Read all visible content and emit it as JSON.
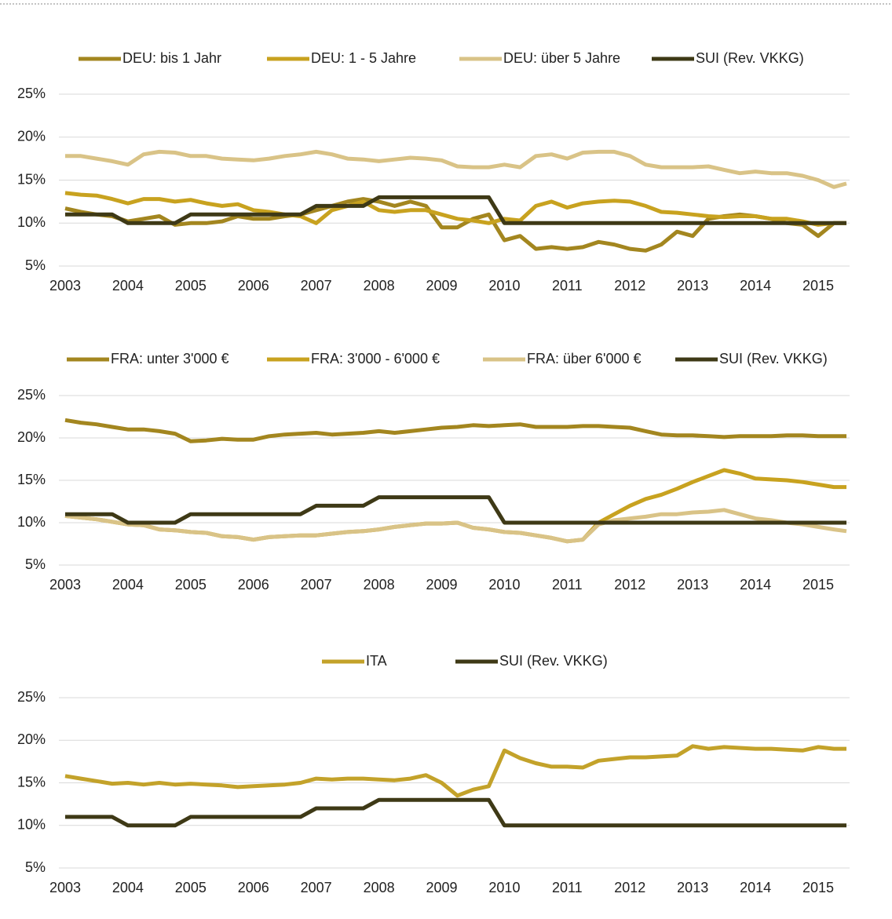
{
  "chart_data": [
    {
      "type": "line",
      "x": [
        2003,
        2003.25,
        2003.5,
        2003.75,
        2004,
        2004.25,
        2004.5,
        2004.75,
        2005,
        2005.25,
        2005.5,
        2005.75,
        2006,
        2006.25,
        2006.5,
        2006.75,
        2007,
        2007.25,
        2007.5,
        2007.75,
        2008,
        2008.25,
        2008.5,
        2008.75,
        2009,
        2009.25,
        2009.5,
        2009.75,
        2010,
        2010.25,
        2010.5,
        2010.75,
        2011,
        2011.25,
        2011.5,
        2011.75,
        2012,
        2012.25,
        2012.5,
        2012.75,
        2013,
        2013.25,
        2013.5,
        2013.75,
        2014,
        2014.25,
        2014.5,
        2014.75,
        2015,
        2015.25,
        2015.45
      ],
      "xlim": [
        2002.9,
        2015.5
      ],
      "xticks": [
        2003,
        2004,
        2005,
        2006,
        2007,
        2008,
        2009,
        2010,
        2011,
        2012,
        2013,
        2014,
        2015
      ],
      "ylim": [
        5,
        25
      ],
      "yticks": [
        {
          "value": 5,
          "label": "5%"
        },
        {
          "value": 10,
          "label": "10%"
        },
        {
          "value": 15,
          "label": "15%"
        },
        {
          "value": 20,
          "label": "20%"
        },
        {
          "value": 25,
          "label": "25%"
        }
      ],
      "grid": true,
      "series": [
        {
          "name": "DEU: bis 1 Jahr",
          "color": "#a3861f",
          "values": [
            11.7,
            11.3,
            11.0,
            10.8,
            10.2,
            10.5,
            10.8,
            9.8,
            10.0,
            10.0,
            10.2,
            10.8,
            10.5,
            10.5,
            10.8,
            11.0,
            11.5,
            12.0,
            12.5,
            12.8,
            12.5,
            12.0,
            12.5,
            12.0,
            9.5,
            9.5,
            10.5,
            11.0,
            8.0,
            8.5,
            7.0,
            7.2,
            7.0,
            7.2,
            7.8,
            7.5,
            7.0,
            6.8,
            7.5,
            9.0,
            8.5,
            10.5,
            10.8,
            11.0,
            10.8,
            10.5,
            10.0,
            9.8,
            8.5,
            10.0,
            10.0
          ]
        },
        {
          "name": "DEU: 1 - 5 Jahre",
          "color": "#c8a21f",
          "values": [
            13.5,
            13.3,
            13.2,
            12.8,
            12.3,
            12.8,
            12.8,
            12.5,
            12.7,
            12.3,
            12.0,
            12.2,
            11.5,
            11.3,
            11.0,
            10.8,
            10.0,
            11.5,
            12.0,
            12.5,
            11.5,
            11.3,
            11.5,
            11.5,
            11.0,
            10.5,
            10.3,
            10.0,
            10.5,
            10.3,
            12.0,
            12.5,
            11.8,
            12.3,
            12.5,
            12.6,
            12.5,
            12.0,
            11.3,
            11.2,
            11.0,
            10.8,
            10.7,
            10.8,
            10.8,
            10.5,
            10.5,
            10.2,
            9.8,
            10.0,
            10.0
          ]
        },
        {
          "name": "DEU: über 5 Jahre",
          "color": "#d9c387",
          "values": [
            17.8,
            17.8,
            17.5,
            17.2,
            16.8,
            18.0,
            18.3,
            18.2,
            17.8,
            17.8,
            17.5,
            17.4,
            17.3,
            17.5,
            17.8,
            18.0,
            18.3,
            18.0,
            17.5,
            17.4,
            17.2,
            17.4,
            17.6,
            17.5,
            17.3,
            16.6,
            16.5,
            16.5,
            16.8,
            16.5,
            17.8,
            18.0,
            17.5,
            18.2,
            18.3,
            18.3,
            17.8,
            16.8,
            16.5,
            16.5,
            16.5,
            16.6,
            16.2,
            15.8,
            16.0,
            15.8,
            15.8,
            15.5,
            15.0,
            14.2,
            14.6
          ]
        },
        {
          "name": "SUI (Rev. VKKG)",
          "color": "#3e3916",
          "values": [
            11,
            11,
            11,
            11,
            10,
            10,
            10,
            10,
            11,
            11,
            11,
            11,
            11,
            11,
            11,
            11,
            12,
            12,
            12,
            12,
            13,
            13,
            13,
            13,
            13,
            13,
            13,
            13,
            10,
            10,
            10,
            10,
            10,
            10,
            10,
            10,
            10,
            10,
            10,
            10,
            10,
            10,
            10,
            10,
            10,
            10,
            10,
            10,
            10,
            10,
            10
          ]
        }
      ]
    },
    {
      "type": "line",
      "x": [
        2003,
        2003.25,
        2003.5,
        2003.75,
        2004,
        2004.25,
        2004.5,
        2004.75,
        2005,
        2005.25,
        2005.5,
        2005.75,
        2006,
        2006.25,
        2006.5,
        2006.75,
        2007,
        2007.25,
        2007.5,
        2007.75,
        2008,
        2008.25,
        2008.5,
        2008.75,
        2009,
        2009.25,
        2009.5,
        2009.75,
        2010,
        2010.25,
        2010.5,
        2010.75,
        2011,
        2011.25,
        2011.5,
        2011.75,
        2012,
        2012.25,
        2012.5,
        2012.75,
        2013,
        2013.25,
        2013.5,
        2013.75,
        2014,
        2014.25,
        2014.5,
        2014.75,
        2015,
        2015.25,
        2015.45
      ],
      "xlim": [
        2002.9,
        2015.5
      ],
      "xticks": [
        2003,
        2004,
        2005,
        2006,
        2007,
        2008,
        2009,
        2010,
        2011,
        2012,
        2013,
        2014,
        2015
      ],
      "ylim": [
        5,
        25
      ],
      "yticks": [
        {
          "value": 5,
          "label": "5%"
        },
        {
          "value": 10,
          "label": "10%"
        },
        {
          "value": 15,
          "label": "15%"
        },
        {
          "value": 20,
          "label": "20%"
        },
        {
          "value": 25,
          "label": "25%"
        }
      ],
      "grid": true,
      "series": [
        {
          "name": "FRA: unter 3'000 €",
          "color": "#a3861f",
          "values": [
            22.1,
            21.8,
            21.6,
            21.3,
            21.0,
            21.0,
            20.8,
            20.5,
            19.6,
            19.7,
            19.9,
            19.8,
            19.8,
            20.2,
            20.4,
            20.5,
            20.6,
            20.4,
            20.5,
            20.6,
            20.8,
            20.6,
            20.8,
            21.0,
            21.2,
            21.3,
            21.5,
            21.4,
            21.5,
            21.6,
            21.3,
            21.3,
            21.3,
            21.4,
            21.4,
            21.3,
            21.2,
            20.8,
            20.4,
            20.3,
            20.3,
            20.2,
            20.1,
            20.2,
            20.2,
            20.2,
            20.3,
            20.3,
            20.2,
            20.2,
            20.2
          ]
        },
        {
          "name": "FRA: 3'000 - 6'000 €",
          "color": "#c8a21f",
          "values": [
            10.8,
            10.6,
            10.4,
            10.1,
            9.8,
            9.7,
            9.2,
            9.1,
            8.9,
            8.8,
            8.4,
            8.3,
            8.0,
            8.3,
            8.4,
            8.5,
            8.5,
            8.7,
            8.9,
            9.0,
            9.2,
            9.5,
            9.7,
            9.9,
            9.9,
            10.0,
            9.4,
            9.2,
            8.9,
            8.8,
            8.5,
            8.2,
            7.8,
            8.0,
            10.0,
            11.0,
            12.0,
            12.8,
            13.3,
            14.0,
            14.8,
            15.5,
            16.2,
            15.8,
            15.2,
            15.1,
            15.0,
            14.8,
            14.5,
            14.2,
            14.2
          ]
        },
        {
          "name": "FRA: über 6'000 €",
          "color": "#d9c387",
          "values": [
            10.8,
            10.6,
            10.4,
            10.1,
            9.8,
            9.7,
            9.2,
            9.1,
            8.9,
            8.8,
            8.4,
            8.3,
            8.0,
            8.3,
            8.4,
            8.5,
            8.5,
            8.7,
            8.9,
            9.0,
            9.2,
            9.5,
            9.7,
            9.9,
            9.9,
            10.0,
            9.4,
            9.2,
            8.9,
            8.8,
            8.5,
            8.2,
            7.8,
            8.0,
            9.8,
            10.3,
            10.5,
            10.7,
            11.0,
            11.0,
            11.2,
            11.3,
            11.5,
            11.0,
            10.5,
            10.3,
            10.0,
            9.8,
            9.5,
            9.2,
            9.0
          ]
        },
        {
          "name": "SUI (Rev. VKKG)",
          "color": "#3e3916",
          "values": [
            11,
            11,
            11,
            11,
            10,
            10,
            10,
            10,
            11,
            11,
            11,
            11,
            11,
            11,
            11,
            11,
            12,
            12,
            12,
            12,
            13,
            13,
            13,
            13,
            13,
            13,
            13,
            13,
            10,
            10,
            10,
            10,
            10,
            10,
            10,
            10,
            10,
            10,
            10,
            10,
            10,
            10,
            10,
            10,
            10,
            10,
            10,
            10,
            10,
            10,
            10
          ]
        }
      ]
    },
    {
      "type": "line",
      "x": [
        2003,
        2003.25,
        2003.5,
        2003.75,
        2004,
        2004.25,
        2004.5,
        2004.75,
        2005,
        2005.25,
        2005.5,
        2005.75,
        2006,
        2006.25,
        2006.5,
        2006.75,
        2007,
        2007.25,
        2007.5,
        2007.75,
        2008,
        2008.25,
        2008.5,
        2008.75,
        2009,
        2009.25,
        2009.5,
        2009.75,
        2010,
        2010.25,
        2010.5,
        2010.75,
        2011,
        2011.25,
        2011.5,
        2011.75,
        2012,
        2012.25,
        2012.5,
        2012.75,
        2013,
        2013.25,
        2013.5,
        2013.75,
        2014,
        2014.25,
        2014.5,
        2014.75,
        2015,
        2015.25,
        2015.45
      ],
      "xlim": [
        2002.9,
        2015.5
      ],
      "xticks": [
        2003,
        2004,
        2005,
        2006,
        2007,
        2008,
        2009,
        2010,
        2011,
        2012,
        2013,
        2014,
        2015
      ],
      "ylim": [
        5,
        25
      ],
      "yticks": [
        {
          "value": 5,
          "label": "5%"
        },
        {
          "value": 10,
          "label": "10%"
        },
        {
          "value": 15,
          "label": "15%"
        },
        {
          "value": 20,
          "label": "20%"
        },
        {
          "value": 25,
          "label": "25%"
        }
      ],
      "grid": true,
      "series": [
        {
          "name": "ITA",
          "color": "#c3a22a",
          "values": [
            15.8,
            15.5,
            15.2,
            14.9,
            15.0,
            14.8,
            15.0,
            14.8,
            14.9,
            14.8,
            14.7,
            14.5,
            14.6,
            14.7,
            14.8,
            15.0,
            15.5,
            15.4,
            15.5,
            15.5,
            15.4,
            15.3,
            15.5,
            15.9,
            15.0,
            13.5,
            14.2,
            14.6,
            18.8,
            17.9,
            17.3,
            16.9,
            16.9,
            16.8,
            17.6,
            17.8,
            18.0,
            18.0,
            18.1,
            18.2,
            19.3,
            19.0,
            19.2,
            19.1,
            19.0,
            19.0,
            18.9,
            18.8,
            19.2,
            19.0,
            19.0
          ]
        },
        {
          "name": "SUI (Rev. VKKG)",
          "color": "#3e3916",
          "values": [
            11,
            11,
            11,
            11,
            10,
            10,
            10,
            10,
            11,
            11,
            11,
            11,
            11,
            11,
            11,
            11,
            12,
            12,
            12,
            12,
            13,
            13,
            13,
            13,
            13,
            13,
            13,
            13,
            10,
            10,
            10,
            10,
            10,
            10,
            10,
            10,
            10,
            10,
            10,
            10,
            10,
            10,
            10,
            10,
            10,
            10,
            10,
            10,
            10,
            10,
            10
          ]
        }
      ]
    }
  ]
}
